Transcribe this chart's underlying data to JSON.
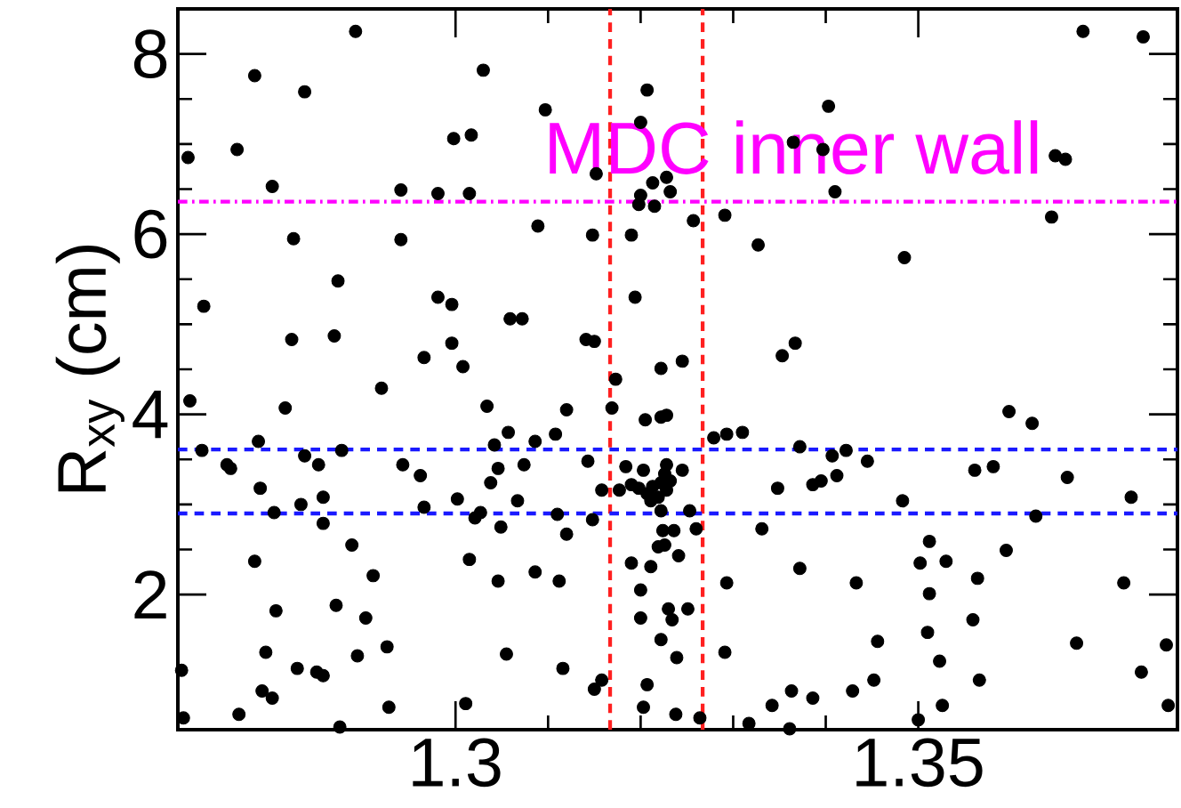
{
  "chart_data": {
    "type": "scatter",
    "ylabel": "R$_{xy}$ (cm)",
    "marker": "circle",
    "xlim": [
      1.27,
      1.378
    ],
    "ylim": [
      0.5,
      8.5
    ],
    "xticks": [
      1.3,
      1.35
    ],
    "yticks": [
      2,
      4,
      6,
      8
    ],
    "x": [
      1.2892,
      1.2783,
      1.2837,
      1.303,
      1.2764,
      1.2711,
      1.2998,
      1.3017,
      1.2802,
      1.2941,
      1.2981,
      1.3015,
      1.2825,
      1.2941,
      1.2873,
      1.2728,
      1.2981,
      1.2996,
      1.3059,
      1.3072,
      1.2823,
      1.2869,
      1.2996,
      1.2966,
      1.3008,
      1.2713,
      1.292,
      1.2816,
      1.3034,
      1.2726,
      1.2787,
      1.2753,
      1.2757,
      1.2837,
      1.2852,
      1.2877,
      1.2943,
      1.2962,
      1.3042,
      1.3057,
      1.3046,
      1.3038,
      1.2789,
      1.2804,
      1.2833,
      1.2857,
      1.2857,
      1.2966,
      1.3002,
      1.3021,
      1.3027,
      1.3049,
      1.3067,
      1.2783,
      1.2888,
      1.2911,
      1.3015,
      1.3046,
      1.2806,
      1.2871,
      1.2903,
      1.2795,
      1.2894,
      1.2926,
      1.3055,
      1.2829,
      1.285,
      1.2857,
      1.2704,
      1.2791,
      1.2802,
      1.2766,
      1.2706,
      1.2875,
      1.2928,
      1.3011,
      1.3207,
      1.3097,
      1.32,
      1.3403,
      1.3365,
      1.3397,
      1.3152,
      1.3213,
      1.3228,
      1.3232,
      1.32,
      1.3198,
      1.3215,
      1.341,
      1.3257,
      1.3291,
      1.3089,
      1.3148,
      1.319,
      1.3327,
      1.3194,
      1.3141,
      1.315,
      1.3367,
      1.3353,
      1.3222,
      1.3245,
      1.3173,
      1.3169,
      1.312,
      1.3205,
      1.3222,
      1.3228,
      1.3086,
      1.3108,
      1.3279,
      1.3293,
      1.331,
      1.3372,
      1.3407,
      1.3422,
      1.3074,
      1.3143,
      1.3184,
      1.3203,
      1.3228,
      1.3245,
      1.3158,
      1.3177,
      1.319,
      1.3198,
      1.3207,
      1.3213,
      1.3222,
      1.3228,
      1.3219,
      1.3211,
      1.3232,
      1.3226,
      1.3348,
      1.3386,
      1.3395,
      1.3412,
      1.311,
      1.3148,
      1.3222,
      1.3253,
      1.312,
      1.326,
      1.3331,
      1.3224,
      1.3236,
      1.3226,
      1.3241,
      1.3219,
      1.3086,
      1.3112,
      1.319,
      1.3211,
      1.3293,
      1.32,
      1.3372,
      1.3433,
      1.323,
      1.3251,
      1.3234,
      1.32,
      1.3222,
      1.3239,
      1.3291,
      1.3116,
      1.315,
      1.3158,
      1.3207,
      1.3203,
      1.3238,
      1.3264,
      1.3317,
      1.3342,
      1.3363,
      1.3386,
      1.3429,
      1.3361,
      1.3678,
      1.3743,
      1.3648,
      1.3659,
      1.3644,
      1.3485,
      1.3445,
      1.3598,
      1.3623,
      1.3561,
      1.3581,
      1.3661,
      1.3483,
      1.373,
      1.3627,
      1.3512,
      1.3502,
      1.353,
      1.3595,
      1.3512,
      1.3564,
      1.3722,
      1.3559,
      1.351,
      1.3456,
      1.3523,
      1.3671,
      1.3768,
      1.3741,
      1.3452,
      1.3566,
      1.3526,
      1.35,
      1.377
    ],
    "series": [
      {
        "color": "#000000",
        "values": [
          8.25,
          7.76,
          7.58,
          7.82,
          6.94,
          6.85,
          7.06,
          7.1,
          6.53,
          6.49,
          6.45,
          6.45,
          5.95,
          5.94,
          5.48,
          5.2,
          5.3,
          5.22,
          5.06,
          5.06,
          4.83,
          4.87,
          4.79,
          4.63,
          4.53,
          4.15,
          4.29,
          4.07,
          4.09,
          3.6,
          3.7,
          3.44,
          3.4,
          3.54,
          3.44,
          3.6,
          3.44,
          3.32,
          3.66,
          3.8,
          3.4,
          3.24,
          3.18,
          2.91,
          3.0,
          3.08,
          2.79,
          2.97,
          3.06,
          2.85,
          2.91,
          2.75,
          3.04,
          2.37,
          2.55,
          2.21,
          2.39,
          2.15,
          1.82,
          1.88,
          1.74,
          1.36,
          1.32,
          1.42,
          1.34,
          1.18,
          1.14,
          1.1,
          1.16,
          0.93,
          0.85,
          0.67,
          0.63,
          0.53,
          0.75,
          0.79,
          7.6,
          7.38,
          7.24,
          7.42,
          7.02,
          6.94,
          6.67,
          6.57,
          6.63,
          6.47,
          6.43,
          6.33,
          6.31,
          6.47,
          6.15,
          6.21,
          6.09,
          5.99,
          5.99,
          5.88,
          5.3,
          4.83,
          4.81,
          4.79,
          4.65,
          4.51,
          4.59,
          4.39,
          4.07,
          4.05,
          3.94,
          3.97,
          3.99,
          3.7,
          3.78,
          3.74,
          3.78,
          3.8,
          3.64,
          3.54,
          3.6,
          3.44,
          3.48,
          3.42,
          3.38,
          3.44,
          3.38,
          3.16,
          3.16,
          3.22,
          3.18,
          3.12,
          3.2,
          3.24,
          3.16,
          3.08,
          3.04,
          3.26,
          3.34,
          3.18,
          3.22,
          3.26,
          3.32,
          2.89,
          2.83,
          2.93,
          2.93,
          2.67,
          2.73,
          2.73,
          2.71,
          2.71,
          2.55,
          2.43,
          2.53,
          2.25,
          2.15,
          2.35,
          2.31,
          2.13,
          2.05,
          2.29,
          2.13,
          1.84,
          1.84,
          1.72,
          1.74,
          1.5,
          1.3,
          1.36,
          1.18,
          0.95,
          1.05,
          1.0,
          0.75,
          0.67,
          0.63,
          0.57,
          0.77,
          0.93,
          0.85,
          0.93,
          0.51,
          8.25,
          8.19,
          6.87,
          6.83,
          6.19,
          5.74,
          3.48,
          4.03,
          3.9,
          3.38,
          3.42,
          3.3,
          3.04,
          3.08,
          2.87,
          2.59,
          2.35,
          2.37,
          2.49,
          2.01,
          2.18,
          2.13,
          1.72,
          1.58,
          1.48,
          1.26,
          1.46,
          1.44,
          1.14,
          1.05,
          1.05,
          0.77,
          0.61,
          0.77
        ]
      }
    ],
    "ref_lines": [
      {
        "axis": "x",
        "value": 1.3167,
        "color": "#ff2020",
        "line_style": "dashed"
      },
      {
        "axis": "x",
        "value": 1.3267,
        "color": "#ff2020",
        "line_style": "dashed"
      },
      {
        "axis": "y",
        "value": 6.36,
        "color": "#ff00ff",
        "line_style": "dashdot",
        "label": "MDC inner wall"
      },
      {
        "axis": "y",
        "value": 3.61,
        "color": "#1a1aff",
        "line_style": "dashed"
      },
      {
        "axis": "y",
        "value": 2.9,
        "color": "#1a1aff",
        "line_style": "dashed"
      }
    ]
  }
}
